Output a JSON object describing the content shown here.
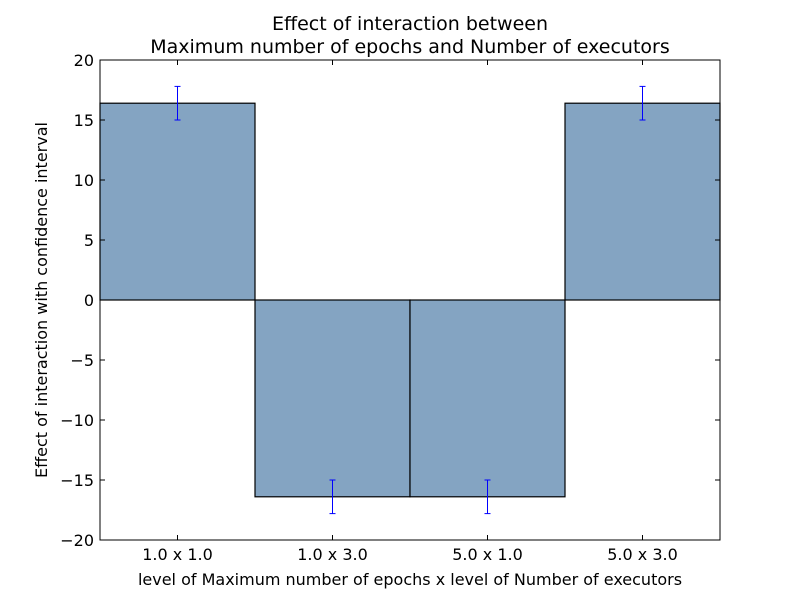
{
  "chart_data": {
    "type": "bar",
    "title_line1": "Effect of interaction between",
    "title_line2": "Maximum number of epochs and Number of executors",
    "xlabel": "level of Maximum number of epochs x level of Number of executors",
    "ylabel": "Effect of interaction with confidence interval",
    "categories": [
      "1.0 x 1.0",
      "1.0 x 3.0",
      "5.0 x 1.0",
      "5.0 x 3.0"
    ],
    "values": [
      16.4,
      -16.4,
      -16.4,
      16.4
    ],
    "error_low": [
      15.0,
      -17.8,
      -17.8,
      15.0
    ],
    "error_high": [
      17.8,
      -15.0,
      -15.0,
      17.8
    ],
    "ylim": [
      -20,
      20
    ],
    "yticks": [
      20,
      15,
      10,
      5,
      0,
      -5,
      -10,
      -15,
      -20
    ],
    "ytick_labels": [
      "20",
      "15",
      "10",
      "5",
      "0",
      "−5",
      "−10",
      "−15",
      "−20"
    ],
    "grid": false,
    "bar_color": "#84a4c2",
    "error_color": "#0000ff"
  }
}
